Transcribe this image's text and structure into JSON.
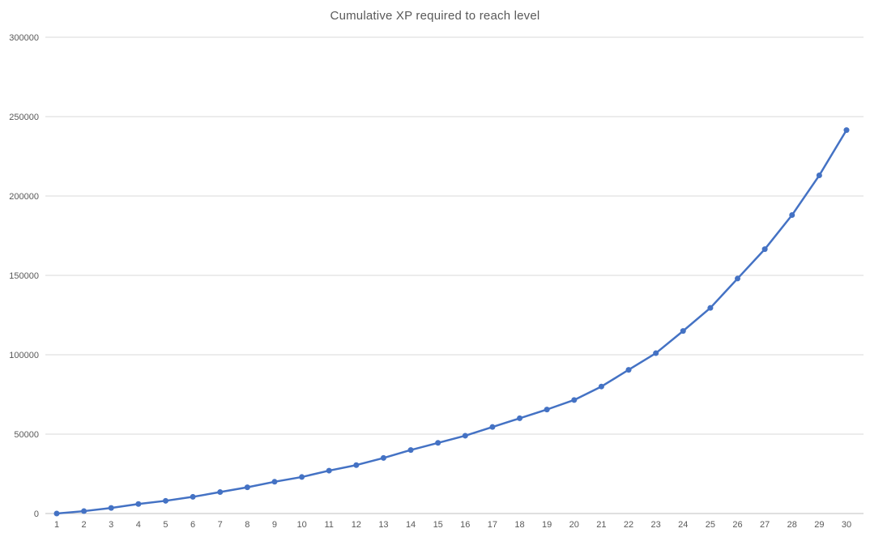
{
  "chart": {
    "title": "Cumulative XP required to reach level"
  },
  "chart_data": {
    "type": "line",
    "title": "Cumulative XP required to reach level",
    "x": [
      1,
      2,
      3,
      4,
      5,
      6,
      7,
      8,
      9,
      10,
      11,
      12,
      13,
      14,
      15,
      16,
      17,
      18,
      19,
      20,
      21,
      22,
      23,
      24,
      25,
      26,
      27,
      28,
      29,
      30
    ],
    "values": [
      0,
      1500,
      3500,
      6000,
      8000,
      10500,
      13500,
      16500,
      20000,
      23000,
      27000,
      30500,
      35000,
      40000,
      44500,
      49000,
      54500,
      60000,
      65500,
      71500,
      80000,
      90500,
      101000,
      115000,
      129500,
      148000,
      166500,
      188000,
      213000,
      241500
    ],
    "xlabel": "",
    "ylabel": "",
    "xlim": [
      1,
      30
    ],
    "ylim": [
      0,
      300000
    ],
    "yticks": [
      0,
      50000,
      100000,
      150000,
      200000,
      250000,
      300000
    ],
    "ytick_labels": [
      "0",
      "50000",
      "100000",
      "150000",
      "200000",
      "250000",
      "300000"
    ],
    "xtick_labels": [
      "1",
      "2",
      "3",
      "4",
      "5",
      "6",
      "7",
      "8",
      "9",
      "10",
      "11",
      "12",
      "13",
      "14",
      "15",
      "16",
      "17",
      "18",
      "19",
      "20",
      "21",
      "22",
      "23",
      "24",
      "25",
      "26",
      "27",
      "28",
      "29",
      "30"
    ],
    "grid": "horizontal",
    "legend": "none",
    "marker": "circle",
    "colors": {
      "line": "#4472C4",
      "marker": "#4472C4",
      "gridline": "#D9D9D9",
      "axis_line": "#BFBFBF",
      "axis_text": "#595959",
      "title_text": "#595959",
      "background": "#FFFFFF"
    }
  }
}
